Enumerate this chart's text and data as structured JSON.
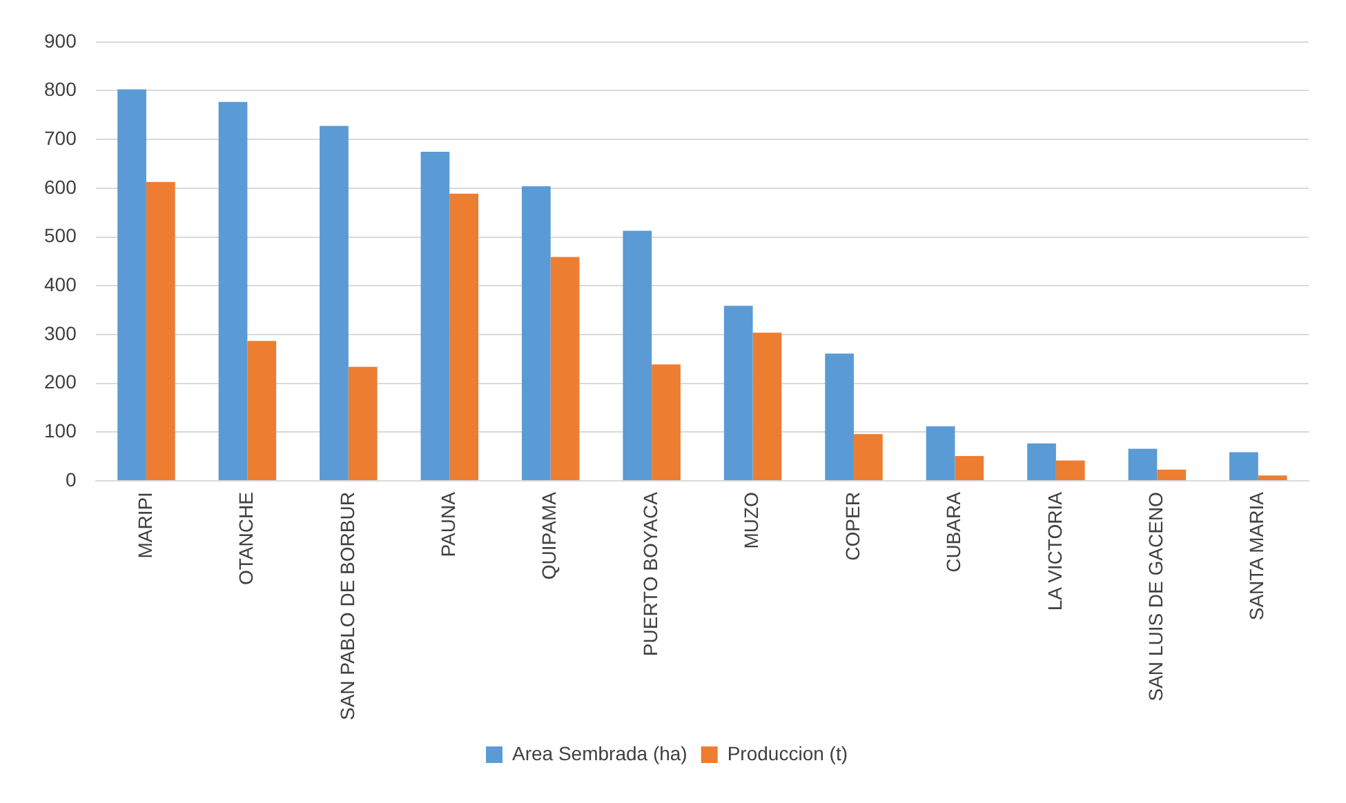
{
  "chart_data": {
    "type": "bar",
    "categories": [
      "MARIPI",
      "OTANCHE",
      "SAN PABLO DE BORBUR",
      "PAUNA",
      "QUIPAMA",
      "PUERTO BOYACA",
      "MUZO",
      "COPER",
      "CUBARA",
      "LA VICTORIA",
      "SAN LUIS DE GACENO",
      "SANTA MARIA"
    ],
    "series": [
      {
        "name": "Area Sembrada (ha)",
        "color": "#5b9bd5",
        "values": [
          803,
          777,
          728,
          675,
          604,
          513,
          359,
          261,
          112,
          77,
          66,
          59
        ]
      },
      {
        "name": "Produccion (t)",
        "color": "#ed7d31",
        "values": [
          613,
          287,
          234,
          589,
          459,
          239,
          304,
          96,
          51,
          42,
          23,
          11
        ]
      }
    ],
    "ylim": [
      0,
      900
    ],
    "yticks": [
      0,
      100,
      200,
      300,
      400,
      500,
      600,
      700,
      800,
      900
    ],
    "grid": "y",
    "legend": "bottom"
  }
}
